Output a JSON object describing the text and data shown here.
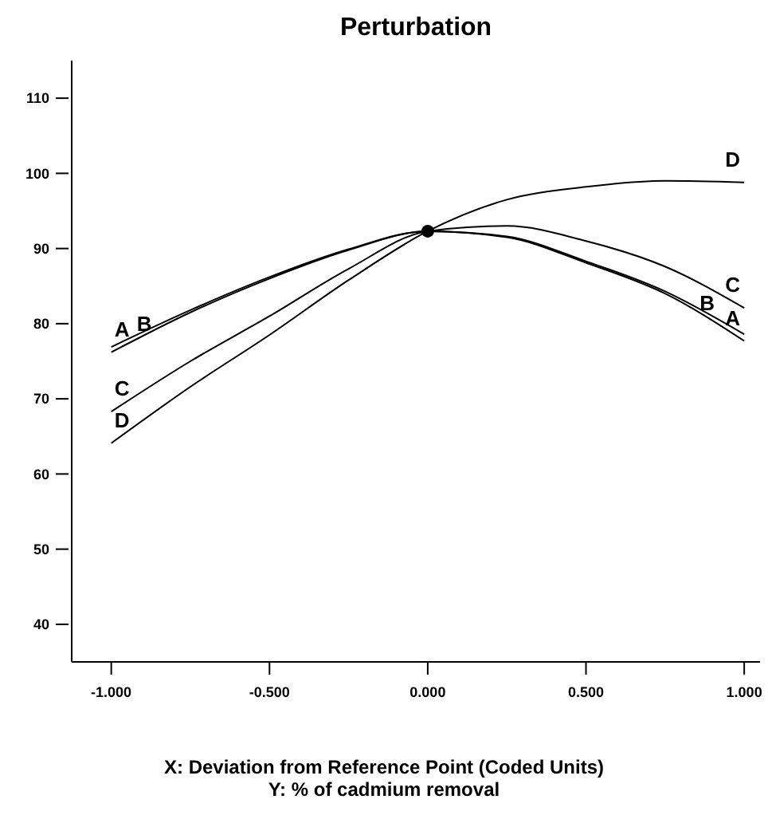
{
  "chart_data": {
    "type": "line",
    "title": "Perturbation",
    "xlabel": "X: Deviation from Reference Point (Coded Units)",
    "annotations": [
      "Y: % of cadmium removal"
    ],
    "x": [
      -1,
      -0.75,
      -0.5,
      -0.25,
      0,
      0.25,
      0.5,
      0.75,
      1
    ],
    "xlim": [
      -1.125,
      1.05
    ],
    "xticks": [
      {
        "value": -1,
        "label": "-1.000"
      },
      {
        "value": -0.5,
        "label": "-0.500"
      },
      {
        "value": 0,
        "label": "0.000"
      },
      {
        "value": 0.5,
        "label": "0.500"
      },
      {
        "value": 1,
        "label": "1.000"
      }
    ],
    "ylim": [
      35,
      115
    ],
    "yticks": [
      40,
      50,
      60,
      70,
      80,
      90,
      100,
      110
    ],
    "marker": "none",
    "line_style": "solid",
    "series": [
      {
        "name": "A",
        "color": "#000000",
        "values": [
          76.2,
          81.5,
          86,
          89.8,
          92.3,
          91.5,
          88.1,
          84,
          77.7
        ]
      },
      {
        "name": "B",
        "color": "#000000",
        "values": [
          76.9,
          81.8,
          86.2,
          89.9,
          92.3,
          91.6,
          88.3,
          84.3,
          78.6
        ]
      },
      {
        "name": "C",
        "color": "#000000",
        "values": [
          68.3,
          75,
          81,
          87.3,
          92.3,
          93,
          91,
          87.6,
          82.1
        ]
      },
      {
        "name": "D",
        "color": "#000000",
        "values": [
          64.1,
          71.6,
          78.5,
          85.8,
          92.3,
          96.5,
          98.2,
          99,
          98.8
        ]
      },
      {
        "type": "scatter",
        "color": "#000000",
        "marker": "circle",
        "x": [
          0
        ],
        "values": [
          92.3
        ]
      }
    ]
  }
}
